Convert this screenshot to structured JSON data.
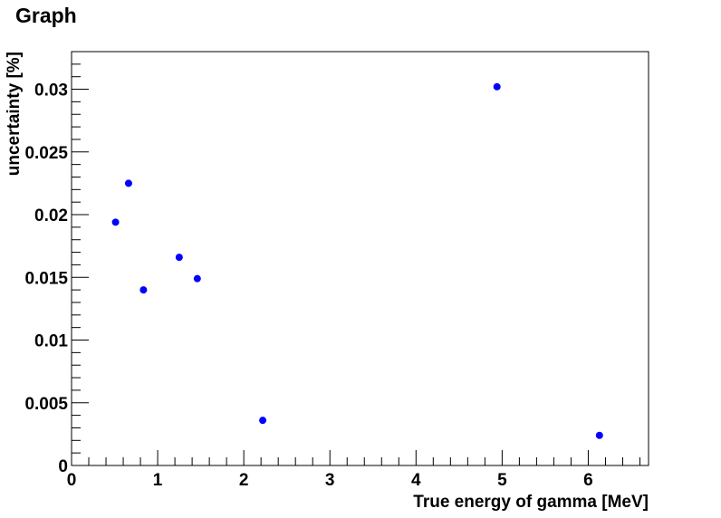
{
  "chart_data": {
    "type": "scatter",
    "title": "Graph",
    "xlabel": "True energy of gamma [MeV]",
    "ylabel": "uncertainty [%]",
    "xlim": [
      0,
      6.7
    ],
    "ylim": [
      0,
      0.033
    ],
    "x_ticks": [
      "0",
      "1",
      "2",
      "3",
      "4",
      "5",
      "6"
    ],
    "y_ticks": [
      "0",
      "0.005",
      "0.01",
      "0.015",
      "0.02",
      "0.025",
      "0.03"
    ],
    "grid": false,
    "marker_color": "#0000ff",
    "points": [
      {
        "x": 0.511,
        "y": 0.0194
      },
      {
        "x": 0.662,
        "y": 0.0225
      },
      {
        "x": 0.835,
        "y": 0.014
      },
      {
        "x": 1.25,
        "y": 0.0166
      },
      {
        "x": 1.46,
        "y": 0.0149
      },
      {
        "x": 2.22,
        "y": 0.0036
      },
      {
        "x": 4.94,
        "y": 0.0302
      },
      {
        "x": 6.13,
        "y": 0.0024
      }
    ]
  }
}
